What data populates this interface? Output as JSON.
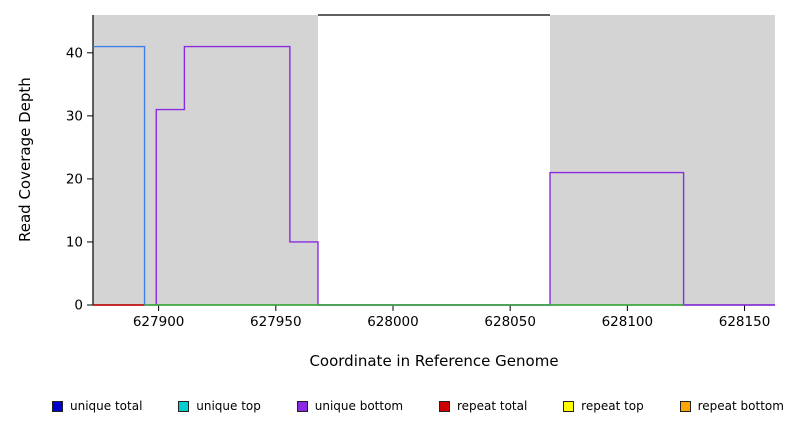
{
  "chart_data": {
    "type": "line",
    "title": "",
    "xlabel": "Coordinate in Reference Genome",
    "ylabel": "Read Coverage Depth",
    "xlim": [
      627872,
      628163
    ],
    "ylim": [
      0,
      46
    ],
    "xticks": [
      627900,
      627950,
      628000,
      628050,
      628100,
      628150
    ],
    "yticks": [
      0,
      10,
      20,
      30,
      40
    ],
    "grid": false,
    "background_regions": [
      {
        "x0": 627872,
        "x1": 627968,
        "color": "#d4d4d4",
        "meaning": "shaded repeat region"
      },
      {
        "x0": 628067,
        "x1": 628163,
        "color": "#d4d4d4",
        "meaning": "shaded repeat region"
      }
    ],
    "series": [
      {
        "name": "repeat total",
        "color": "#cc0000",
        "points": [
          [
            627872,
            0
          ],
          [
            627894,
            0
          ]
        ]
      },
      {
        "name": "unique total",
        "color": "#3f7fe8",
        "points": [
          [
            627872,
            41
          ],
          [
            627894,
            41
          ],
          [
            627894,
            0
          ]
        ]
      },
      {
        "name": "unique bottom",
        "color": "#8a2be2",
        "points": [
          [
            627899,
            0
          ],
          [
            627899,
            31
          ],
          [
            627911,
            31
          ],
          [
            627911,
            41
          ],
          [
            627956,
            41
          ],
          [
            627956,
            10
          ],
          [
            627968,
            10
          ],
          [
            627968,
            0
          ],
          [
            628067,
            0
          ],
          [
            628067,
            21
          ],
          [
            628124,
            21
          ],
          [
            628124,
            0
          ],
          [
            628163,
            0
          ]
        ]
      },
      {
        "name": "zero baseline",
        "color": "#33b233",
        "points": [
          [
            627894,
            0
          ],
          [
            628124,
            0
          ]
        ]
      }
    ]
  },
  "legend": {
    "items": [
      {
        "label": "unique total",
        "color": "#0000cd"
      },
      {
        "label": "unique top",
        "color": "#00cdcd"
      },
      {
        "label": "unique bottom",
        "color": "#8a2be2"
      },
      {
        "label": "repeat total",
        "color": "#cc0000"
      },
      {
        "label": "repeat top",
        "color": "#ffff00"
      },
      {
        "label": "repeat bottom",
        "color": "#ffa500"
      }
    ]
  }
}
